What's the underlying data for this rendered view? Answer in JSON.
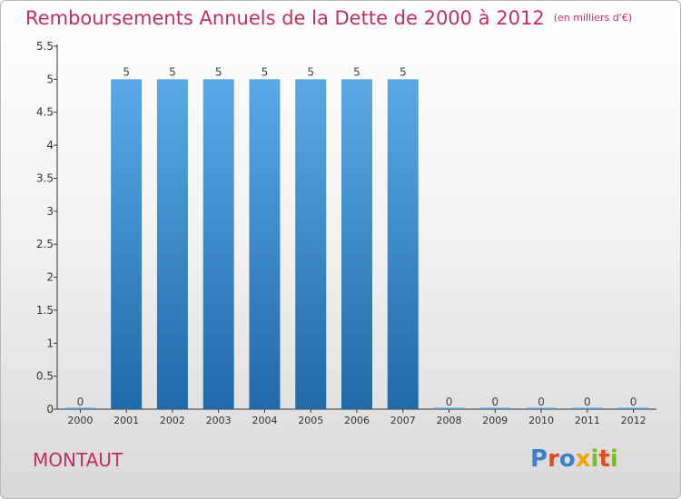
{
  "header": {
    "title": "Remboursements Annuels de la Dette de 2000 à 2012",
    "unit": "(en milliers d'€)"
  },
  "place": "MONTAUT",
  "logo": {
    "text": "Proxiti",
    "colors": [
      "#3a7fd0",
      "#e8491d",
      "#3a7fd0",
      "#f2a400",
      "#7abd2c",
      "#e8491d",
      "#7abd2c"
    ]
  },
  "colors": {
    "title": "#c0305b",
    "bar_top": "#5aa9e6",
    "bar_bottom": "#1f6aa8",
    "axis": "#333333"
  },
  "chart_data": {
    "type": "bar",
    "title": "Remboursements Annuels de la Dette de 2000 à 2012",
    "categories": [
      "2000",
      "2001",
      "2002",
      "2003",
      "2004",
      "2005",
      "2006",
      "2007",
      "2008",
      "2009",
      "2010",
      "2011",
      "2012"
    ],
    "values": [
      0,
      5,
      5,
      5,
      5,
      5,
      5,
      5,
      0,
      0,
      0,
      0,
      0
    ],
    "data_labels": [
      "0",
      "5",
      "5",
      "5",
      "5",
      "5",
      "5",
      "5",
      "0",
      "0",
      "0",
      "0",
      "0"
    ],
    "y_ticks": [
      "0",
      "0.5",
      "1",
      "1.5",
      "2",
      "2.5",
      "3",
      "3.5",
      "4",
      "4.5",
      "5",
      "5.5"
    ],
    "ylim": [
      0,
      5.5
    ],
    "xlabel": "",
    "ylabel": "",
    "grid": false
  }
}
